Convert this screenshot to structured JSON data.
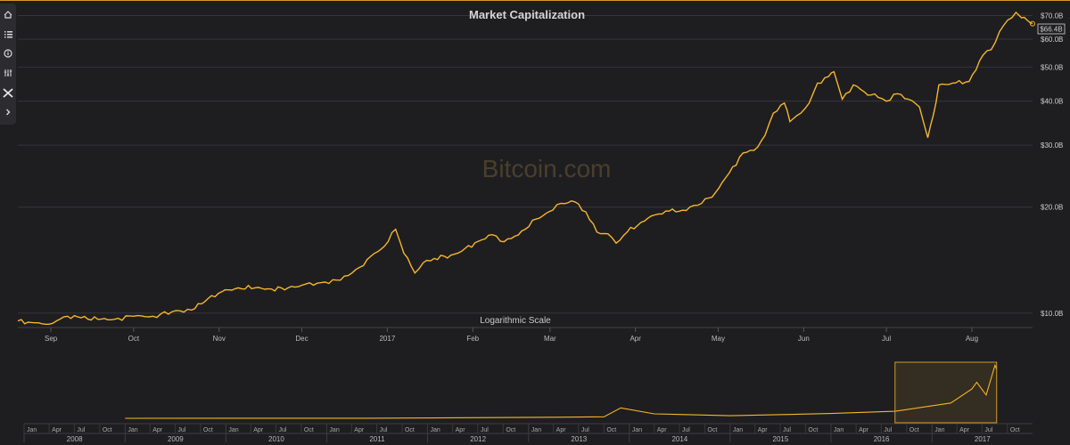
{
  "toolbar": {
    "items": [
      {
        "icon": "home-icon"
      },
      {
        "icon": "list-icon"
      },
      {
        "icon": "info-icon"
      },
      {
        "icon": "sliders-icon"
      },
      {
        "icon": "tools-icon"
      },
      {
        "icon": "chevron-right-icon"
      }
    ]
  },
  "watermark": "Bitcoin.com",
  "colors": {
    "line": "#f7b52c",
    "background": "#1e1e21",
    "navigator_mask": "#d39b28"
  },
  "chart_data": {
    "type": "line",
    "title": "Market Capitalization",
    "scale_note": "Logarithmic Scale",
    "y_scale": "log",
    "ylim": [
      9.1,
      74
    ],
    "y_ticks": [
      {
        "value": 10,
        "label": "$10.0B"
      },
      {
        "value": 20,
        "label": "$20.0B"
      },
      {
        "value": 30,
        "label": "$30.0B"
      },
      {
        "value": 40,
        "label": "$40.0B"
      },
      {
        "value": 50,
        "label": "$50.0B"
      },
      {
        "value": 60,
        "label": "$60.0B"
      },
      {
        "value": 70,
        "label": "$70.0B"
      }
    ],
    "current_value_label": "$66.4B",
    "x_range": [
      "2016-08-20",
      "2017-08-23"
    ],
    "x_ticks": [
      {
        "date": "2016-09-01",
        "label": "Sep"
      },
      {
        "date": "2016-10-01",
        "label": "Oct"
      },
      {
        "date": "2016-11-01",
        "label": "Nov"
      },
      {
        "date": "2016-12-01",
        "label": "Dec"
      },
      {
        "date": "2017-01-01",
        "label": "2017"
      },
      {
        "date": "2017-02-01",
        "label": "Feb"
      },
      {
        "date": "2017-03-01",
        "label": "Mar"
      },
      {
        "date": "2017-04-01",
        "label": "Apr"
      },
      {
        "date": "2017-05-01",
        "label": "May"
      },
      {
        "date": "2017-06-01",
        "label": "Jun"
      },
      {
        "date": "2017-07-01",
        "label": "Jul"
      },
      {
        "date": "2017-08-01",
        "label": "Aug"
      }
    ],
    "series": [
      {
        "values": [
          [
            "2016-08-20",
            9.5
          ],
          [
            "2016-08-25",
            9.4
          ],
          [
            "2016-08-30",
            9.3
          ],
          [
            "2016-09-03",
            9.5
          ],
          [
            "2016-09-07",
            9.8
          ],
          [
            "2016-09-12",
            9.7
          ],
          [
            "2016-09-18",
            9.6
          ],
          [
            "2016-09-24",
            9.6
          ],
          [
            "2016-10-01",
            9.8
          ],
          [
            "2016-10-08",
            9.8
          ],
          [
            "2016-10-15",
            10.1
          ],
          [
            "2016-10-22",
            10.2
          ],
          [
            "2016-10-28",
            11.0
          ],
          [
            "2016-11-02",
            11.5
          ],
          [
            "2016-11-08",
            11.8
          ],
          [
            "2016-11-14",
            11.8
          ],
          [
            "2016-11-20",
            11.7
          ],
          [
            "2016-11-26",
            11.8
          ],
          [
            "2016-12-01",
            12.0
          ],
          [
            "2016-12-08",
            12.2
          ],
          [
            "2016-12-15",
            12.4
          ],
          [
            "2016-12-22",
            13.5
          ],
          [
            "2016-12-26",
            14.5
          ],
          [
            "2016-12-31",
            15.5
          ],
          [
            "2017-01-04",
            17.3
          ],
          [
            "2017-01-07",
            14.8
          ],
          [
            "2017-01-11",
            13.0
          ],
          [
            "2017-01-14",
            13.9
          ],
          [
            "2017-01-18",
            14.3
          ],
          [
            "2017-01-24",
            14.6
          ],
          [
            "2017-01-28",
            15.0
          ],
          [
            "2017-02-03",
            16.0
          ],
          [
            "2017-02-08",
            16.7
          ],
          [
            "2017-02-11",
            16.0
          ],
          [
            "2017-02-15",
            16.3
          ],
          [
            "2017-02-20",
            17.3
          ],
          [
            "2017-02-24",
            18.5
          ],
          [
            "2017-03-02",
            19.6
          ],
          [
            "2017-03-05",
            20.5
          ],
          [
            "2017-03-10",
            20.7
          ],
          [
            "2017-03-14",
            19.4
          ],
          [
            "2017-03-18",
            17.0
          ],
          [
            "2017-03-22",
            16.8
          ],
          [
            "2017-03-25",
            15.8
          ],
          [
            "2017-03-29",
            17.0
          ],
          [
            "2017-04-03",
            18.1
          ],
          [
            "2017-04-08",
            19.0
          ],
          [
            "2017-04-12",
            19.5
          ],
          [
            "2017-04-18",
            19.6
          ],
          [
            "2017-04-25",
            20.5
          ],
          [
            "2017-04-30",
            22.0
          ],
          [
            "2017-05-05",
            25.0
          ],
          [
            "2017-05-10",
            28.5
          ],
          [
            "2017-05-14",
            29.0
          ],
          [
            "2017-05-18",
            32.0
          ],
          [
            "2017-05-21",
            37.0
          ],
          [
            "2017-05-25",
            39.5
          ],
          [
            "2017-05-27",
            35.0
          ],
          [
            "2017-05-31",
            37.0
          ],
          [
            "2017-06-03",
            39.5
          ],
          [
            "2017-06-06",
            45.0
          ],
          [
            "2017-06-10",
            47.0
          ],
          [
            "2017-06-12",
            48.5
          ],
          [
            "2017-06-15",
            40.5
          ],
          [
            "2017-06-19",
            44.5
          ],
          [
            "2017-06-23",
            42.5
          ],
          [
            "2017-06-28",
            41.0
          ],
          [
            "2017-07-01",
            40.0
          ],
          [
            "2017-07-05",
            42.0
          ],
          [
            "2017-07-09",
            40.5
          ],
          [
            "2017-07-13",
            38.5
          ],
          [
            "2017-07-16",
            31.5
          ],
          [
            "2017-07-18",
            36.5
          ],
          [
            "2017-07-20",
            44.5
          ],
          [
            "2017-07-25",
            45.0
          ],
          [
            "2017-07-31",
            45.5
          ],
          [
            "2017-08-05",
            54.0
          ],
          [
            "2017-08-08",
            56.0
          ],
          [
            "2017-08-11",
            63.0
          ],
          [
            "2017-08-14",
            68.0
          ],
          [
            "2017-08-17",
            71.5
          ],
          [
            "2017-08-19",
            69.0
          ],
          [
            "2017-08-21",
            68.0
          ],
          [
            "2017-08-23",
            66.4
          ]
        ]
      }
    ],
    "navigator": {
      "x_range": [
        "2008-01-01",
        "2017-12-31"
      ],
      "selected_range": [
        "2016-08-20",
        "2017-08-23"
      ],
      "years": [
        "2008",
        "2009",
        "2010",
        "2011",
        "2012",
        "2013",
        "2014",
        "2015",
        "2016",
        "2017"
      ],
      "month_labels": [
        "Jan",
        "Apr",
        "Jul",
        "Oct"
      ],
      "series": [
        [
          "2009-01-01",
          0.0
        ],
        [
          "2011-06-01",
          0.1
        ],
        [
          "2013-04-01",
          1.5
        ],
        [
          "2013-10-01",
          2.0
        ],
        [
          "2013-12-01",
          14.0
        ],
        [
          "2014-04-01",
          6.0
        ],
        [
          "2015-01-01",
          3.5
        ],
        [
          "2016-01-01",
          6.5
        ],
        [
          "2016-08-20",
          9.5
        ],
        [
          "2017-01-04",
          17.0
        ],
        [
          "2017-03-10",
          20.7
        ],
        [
          "2017-05-25",
          39.5
        ],
        [
          "2017-06-12",
          48.5
        ],
        [
          "2017-07-16",
          31.5
        ],
        [
          "2017-08-17",
          71.5
        ],
        [
          "2017-08-23",
          66.4
        ]
      ]
    }
  }
}
